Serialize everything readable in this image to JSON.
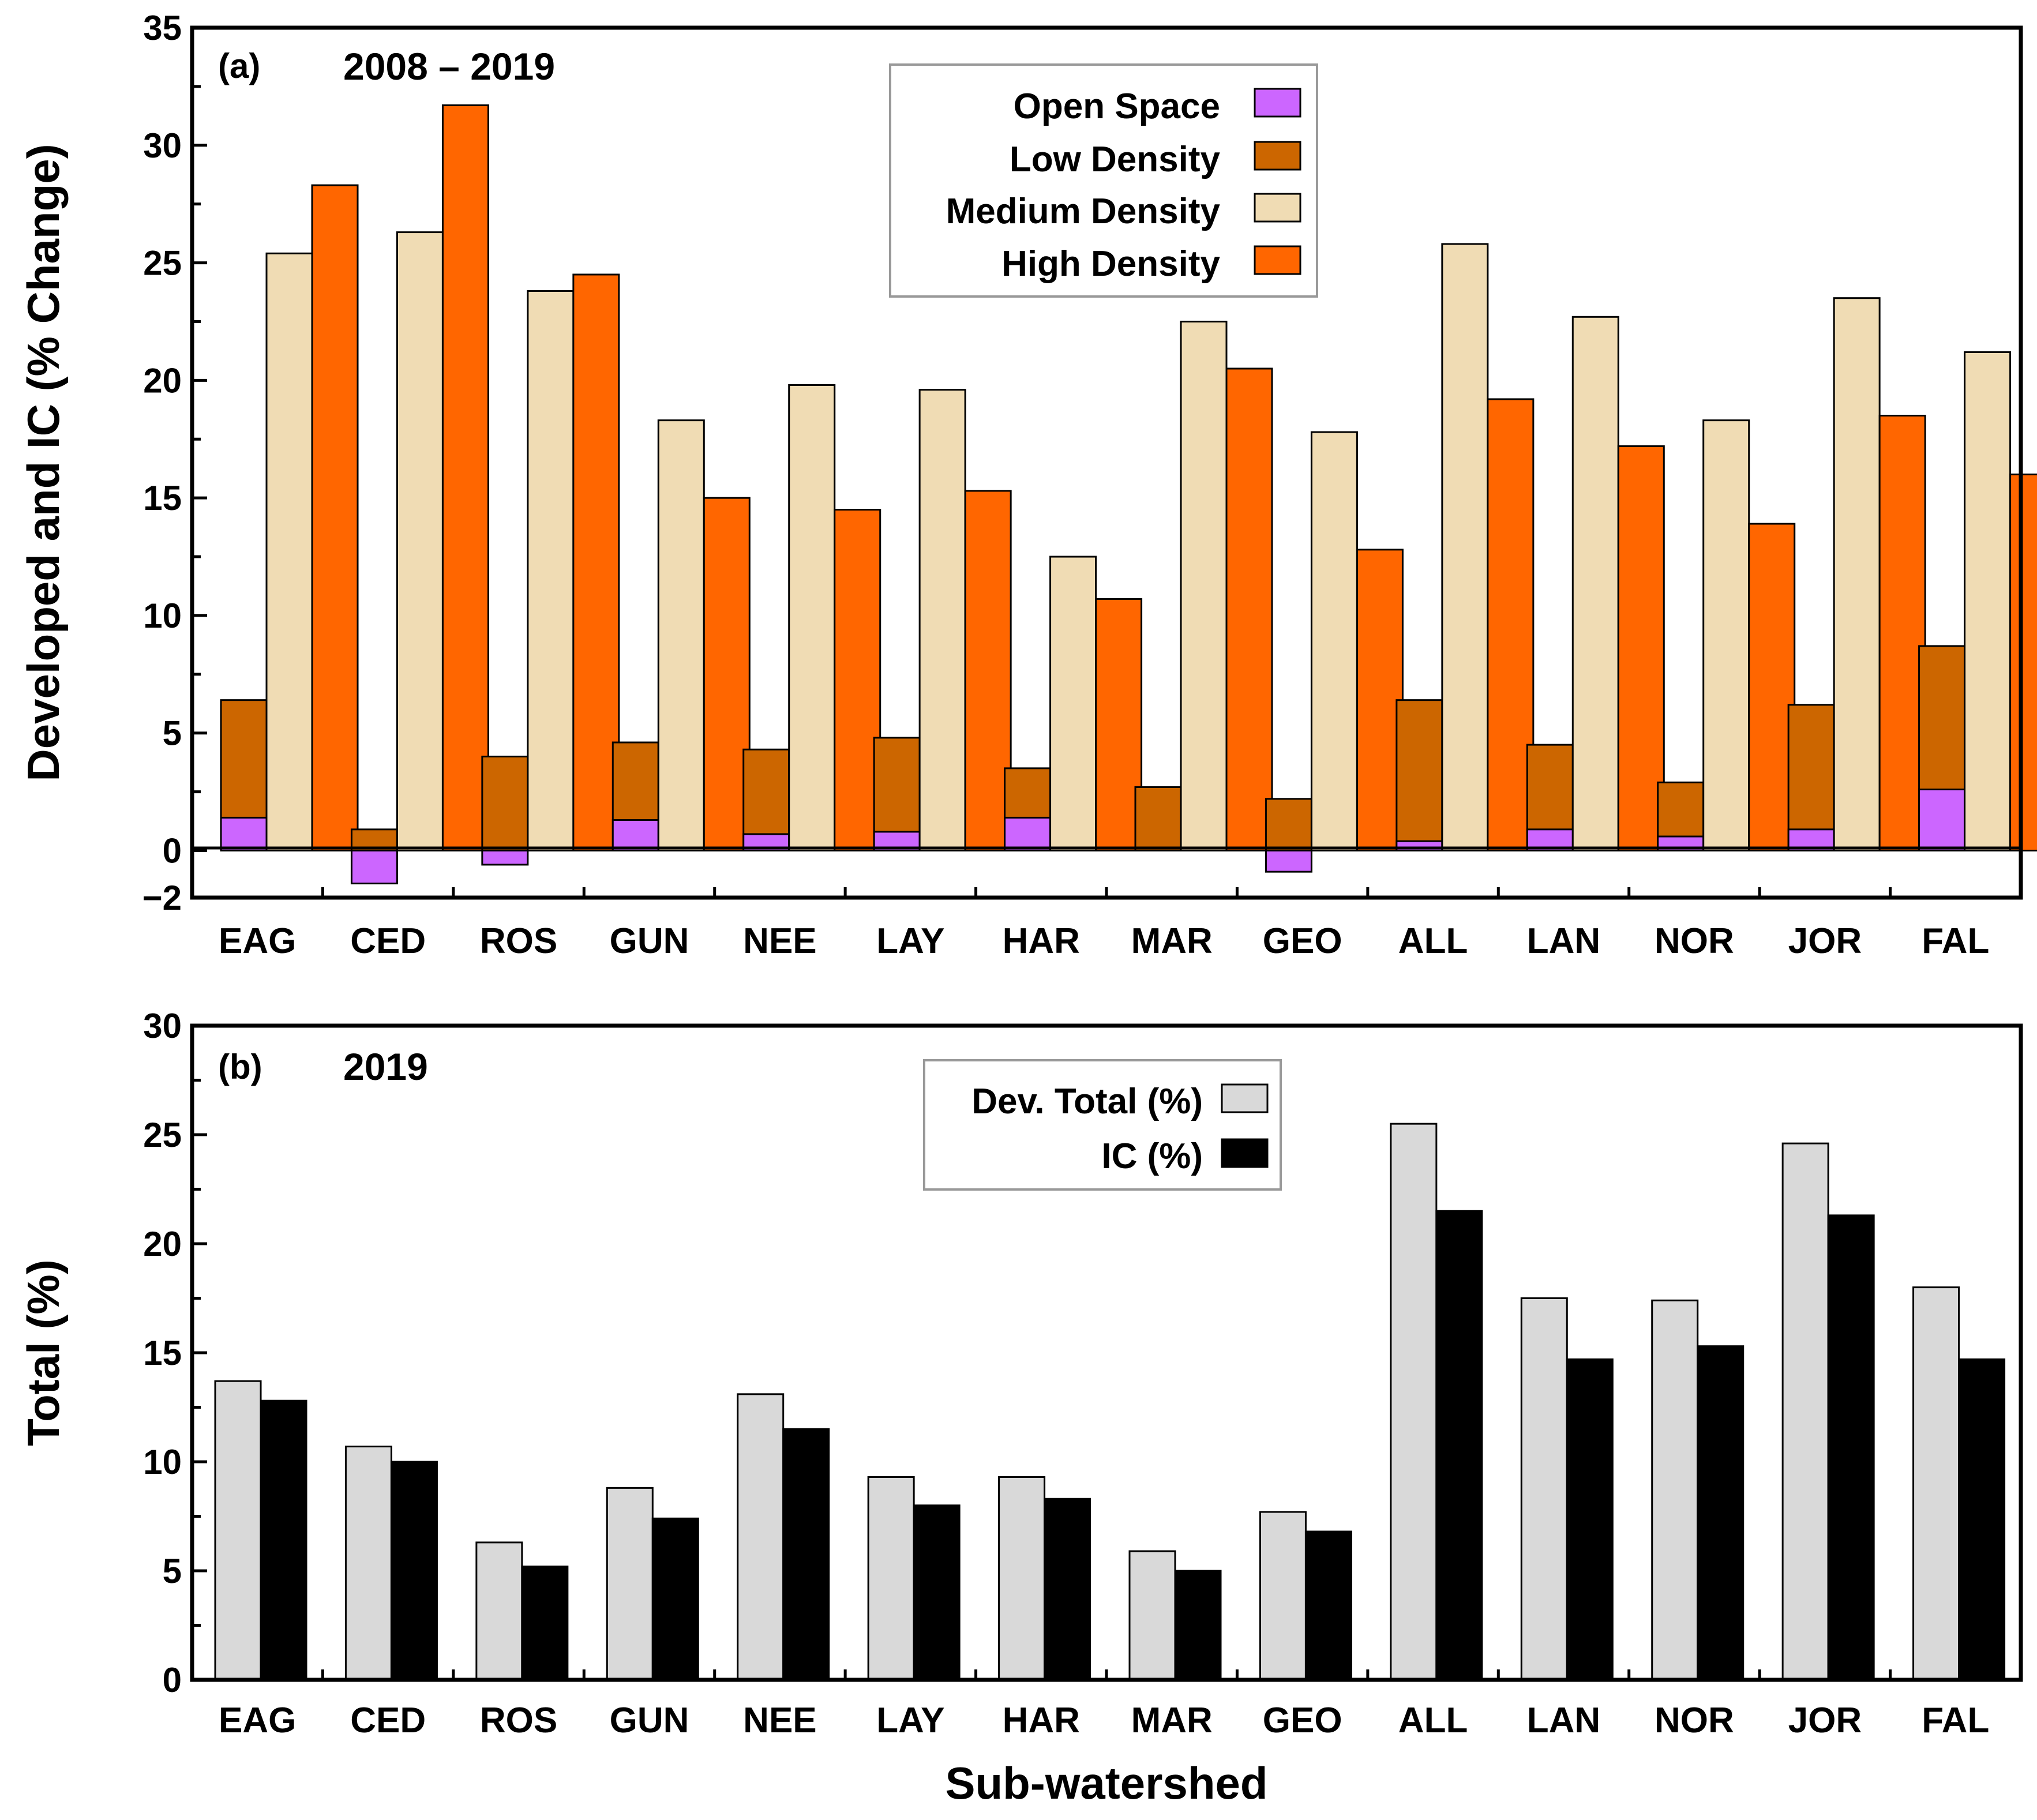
{
  "figure": {
    "x_axis_label": "Sub-watershed"
  },
  "chart_data": [
    {
      "type": "bar",
      "stacked_partial": "Open Space is drawn overlaid at the base of the Low Density bar",
      "panel_label": "(a)",
      "title": "2008 – 2019",
      "ylabel": "Developed and IC (% Change)",
      "xlabel": "",
      "ylim": [
        -2,
        35
      ],
      "yticks": [
        -2,
        0,
        5,
        10,
        15,
        20,
        25,
        30,
        35
      ],
      "tick_labels": [
        "−2",
        "0",
        "5",
        "10",
        "15",
        "20",
        "25",
        "30",
        "35"
      ],
      "legend_position": "top-center",
      "categories": [
        "EAG",
        "CED",
        "ROS",
        "GUN",
        "NEE",
        "LAY",
        "HAR",
        "MAR",
        "GEO",
        "ALL",
        "LAN",
        "NOR",
        "JOR",
        "FAL"
      ],
      "series": [
        {
          "name": "Open Space",
          "color": "#cc66ff",
          "values": [
            1.4,
            -1.4,
            -0.6,
            1.3,
            0.7,
            0.8,
            1.4,
            0,
            -0.9,
            0.4,
            0.9,
            0.6,
            0.9,
            2.6
          ]
        },
        {
          "name": "Low Density",
          "color": "#cc6600",
          "values": [
            6.4,
            0.9,
            4.0,
            4.6,
            4.3,
            4.8,
            3.5,
            2.7,
            2.2,
            6.4,
            4.5,
            2.9,
            6.2,
            8.7
          ]
        },
        {
          "name": "Medium Density",
          "color": "#f0dcb4",
          "values": [
            25.4,
            26.3,
            23.8,
            18.3,
            19.8,
            19.6,
            12.5,
            22.5,
            17.8,
            25.8,
            22.7,
            18.3,
            23.5,
            21.2
          ]
        },
        {
          "name": "High Density",
          "color": "#ff6600",
          "values": [
            28.3,
            31.7,
            24.5,
            15.0,
            14.5,
            15.3,
            10.7,
            20.5,
            12.8,
            19.2,
            17.2,
            13.9,
            18.5,
            16.0
          ]
        }
      ]
    },
    {
      "type": "bar",
      "panel_label": "(b)",
      "title": "2019",
      "ylabel": "Total (%)",
      "xlabel": "Sub-watershed",
      "ylim": [
        0,
        30
      ],
      "yticks": [
        0,
        5,
        10,
        15,
        20,
        25,
        30
      ],
      "tick_labels": [
        "0",
        "5",
        "10",
        "15",
        "20",
        "25",
        "30"
      ],
      "legend_position": "top-center",
      "categories": [
        "EAG",
        "CED",
        "ROS",
        "GUN",
        "NEE",
        "LAY",
        "HAR",
        "MAR",
        "GEO",
        "ALL",
        "LAN",
        "NOR",
        "JOR",
        "FAL"
      ],
      "series": [
        {
          "name": "Dev. Total (%)",
          "color": "#d9d9d9",
          "values": [
            13.7,
            10.7,
            6.3,
            8.8,
            13.1,
            9.3,
            9.3,
            5.9,
            7.7,
            25.5,
            17.5,
            17.4,
            24.6,
            18.0
          ]
        },
        {
          "name": "IC (%)",
          "color": "#000000",
          "values": [
            12.8,
            10.0,
            5.2,
            7.4,
            11.5,
            8.0,
            8.3,
            5.0,
            6.8,
            21.5,
            14.7,
            15.3,
            21.3,
            14.7
          ]
        }
      ]
    }
  ]
}
